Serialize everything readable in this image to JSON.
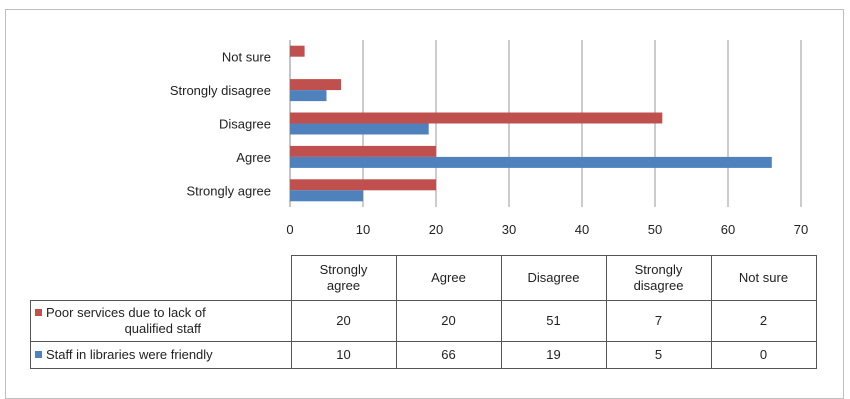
{
  "chart_data": {
    "type": "bar",
    "orientation": "horizontal",
    "categories": [
      "Strongly agree",
      "Agree",
      "Disagree",
      "Strongly disagree",
      "Not sure"
    ],
    "category_headers": [
      [
        "Strongly",
        "agree"
      ],
      [
        "Agree"
      ],
      [
        "Disagree"
      ],
      [
        "Strongly",
        "disagree"
      ],
      [
        "Not sure"
      ]
    ],
    "series": [
      {
        "name": "Poor services due to lack of qualified staff",
        "name_lines": [
          "Poor services due to lack of",
          "qualified staff"
        ],
        "color": "#c0504d",
        "values": [
          20,
          20,
          51,
          7,
          2
        ]
      },
      {
        "name": "Staff in libraries were friendly",
        "name_lines": [
          "Staff in libraries were friendly"
        ],
        "color": "#4f81bd",
        "values": [
          10,
          66,
          19,
          5,
          0
        ]
      }
    ],
    "xlim": [
      0,
      70
    ],
    "xticks": [
      0,
      10,
      20,
      30,
      40,
      50,
      60,
      70
    ],
    "grid": true,
    "legend": "data-table"
  }
}
